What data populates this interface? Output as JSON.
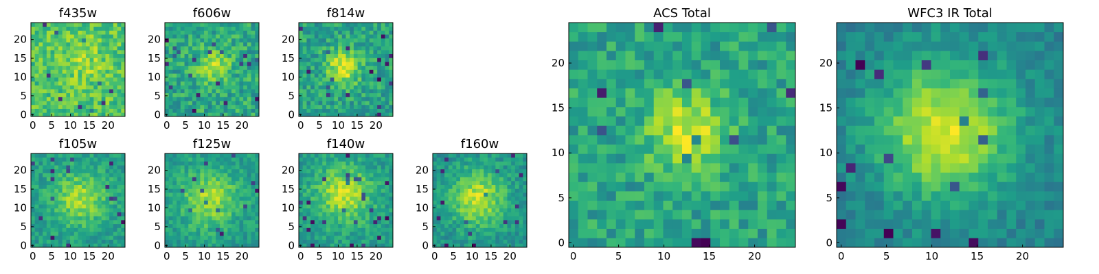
{
  "chart_data": [
    {
      "type": "heatmap",
      "title": "f435w",
      "xlim": [
        0,
        24
      ],
      "ylim": [
        0,
        24
      ],
      "xticks": [
        "0",
        "5",
        "10",
        "15",
        "20"
      ],
      "yticks": [
        "0",
        "5",
        "10",
        "15",
        "20"
      ],
      "colormap": "viridis",
      "grid": 24,
      "peak": [
        13,
        14
      ],
      "sigma": 4,
      "amplitude": 0.12,
      "base": 0.72,
      "noise": 0.3,
      "seed": 11
    },
    {
      "type": "heatmap",
      "title": "f606w",
      "xlim": [
        0,
        24
      ],
      "ylim": [
        0,
        24
      ],
      "xticks": [
        "0",
        "5",
        "10",
        "15",
        "20"
      ],
      "yticks": [
        "0",
        "5",
        "10",
        "15",
        "20"
      ],
      "colormap": "viridis",
      "grid": 24,
      "peak": [
        12,
        12
      ],
      "sigma": 3,
      "amplitude": 0.28,
      "base": 0.6,
      "noise": 0.32,
      "seed": 23
    },
    {
      "type": "heatmap",
      "title": "f814w",
      "xlim": [
        0,
        24
      ],
      "ylim": [
        0,
        24
      ],
      "xticks": [
        "0",
        "5",
        "10",
        "15",
        "20"
      ],
      "yticks": [
        "0",
        "5",
        "10",
        "15",
        "20"
      ],
      "colormap": "viridis",
      "grid": 24,
      "peak": [
        11,
        12
      ],
      "sigma": 3,
      "amplitude": 0.38,
      "base": 0.58,
      "noise": 0.3,
      "seed": 37
    },
    {
      "type": "heatmap",
      "title": "f105w",
      "xlim": [
        0,
        24
      ],
      "ylim": [
        0,
        24
      ],
      "xticks": [
        "0",
        "5",
        "10",
        "15",
        "20"
      ],
      "yticks": [
        "0",
        "5",
        "10",
        "15",
        "20"
      ],
      "colormap": "viridis",
      "grid": 24,
      "peak": [
        12,
        12
      ],
      "sigma": 5,
      "amplitude": 0.3,
      "base": 0.55,
      "noise": 0.22,
      "seed": 41
    },
    {
      "type": "heatmap",
      "title": "f125w",
      "xlim": [
        0,
        24
      ],
      "ylim": [
        0,
        24
      ],
      "xticks": [
        "0",
        "5",
        "10",
        "15",
        "20"
      ],
      "yticks": [
        "0",
        "5",
        "10",
        "15",
        "20"
      ],
      "colormap": "viridis",
      "grid": 24,
      "peak": [
        11,
        12
      ],
      "sigma": 5,
      "amplitude": 0.32,
      "base": 0.55,
      "noise": 0.22,
      "seed": 53
    },
    {
      "type": "heatmap",
      "title": "f140w",
      "xlim": [
        0,
        24
      ],
      "ylim": [
        0,
        24
      ],
      "xticks": [
        "0",
        "5",
        "10",
        "15",
        "20"
      ],
      "yticks": [
        "0",
        "5",
        "10",
        "15",
        "20"
      ],
      "colormap": "viridis",
      "grid": 24,
      "peak": [
        11,
        13
      ],
      "sigma": 5,
      "amplitude": 0.35,
      "base": 0.55,
      "noise": 0.22,
      "seed": 67
    },
    {
      "type": "heatmap",
      "title": "f160w",
      "xlim": [
        0,
        24
      ],
      "ylim": [
        0,
        24
      ],
      "xticks": [
        "0",
        "5",
        "10",
        "15",
        "20"
      ],
      "yticks": [
        "0",
        "5",
        "10",
        "15",
        "20"
      ],
      "colormap": "viridis",
      "grid": 24,
      "peak": [
        11,
        12
      ],
      "sigma": 5,
      "amplitude": 0.38,
      "base": 0.52,
      "noise": 0.22,
      "seed": 79
    },
    {
      "type": "heatmap",
      "title": "ACS Total",
      "xlim": [
        0,
        24
      ],
      "ylim": [
        0,
        24
      ],
      "xticks": [
        "0",
        "5",
        "10",
        "15",
        "20"
      ],
      "yticks": [
        "0",
        "5",
        "10",
        "15",
        "20"
      ],
      "colormap": "viridis",
      "grid": 24,
      "peak": [
        12,
        12
      ],
      "sigma": 3,
      "amplitude": 0.35,
      "base": 0.58,
      "noise": 0.28,
      "seed": 97
    },
    {
      "type": "heatmap",
      "title": "WFC3 IR Total",
      "xlim": [
        0,
        24
      ],
      "ylim": [
        0,
        24
      ],
      "xticks": [
        "0",
        "5",
        "10",
        "15",
        "20"
      ],
      "yticks": [
        "0",
        "5",
        "10",
        "15",
        "20"
      ],
      "colormap": "viridis",
      "grid": 24,
      "peak": [
        11,
        12
      ],
      "sigma": 5,
      "amplitude": 0.5,
      "base": 0.45,
      "noise": 0.18,
      "seed": 131
    }
  ]
}
